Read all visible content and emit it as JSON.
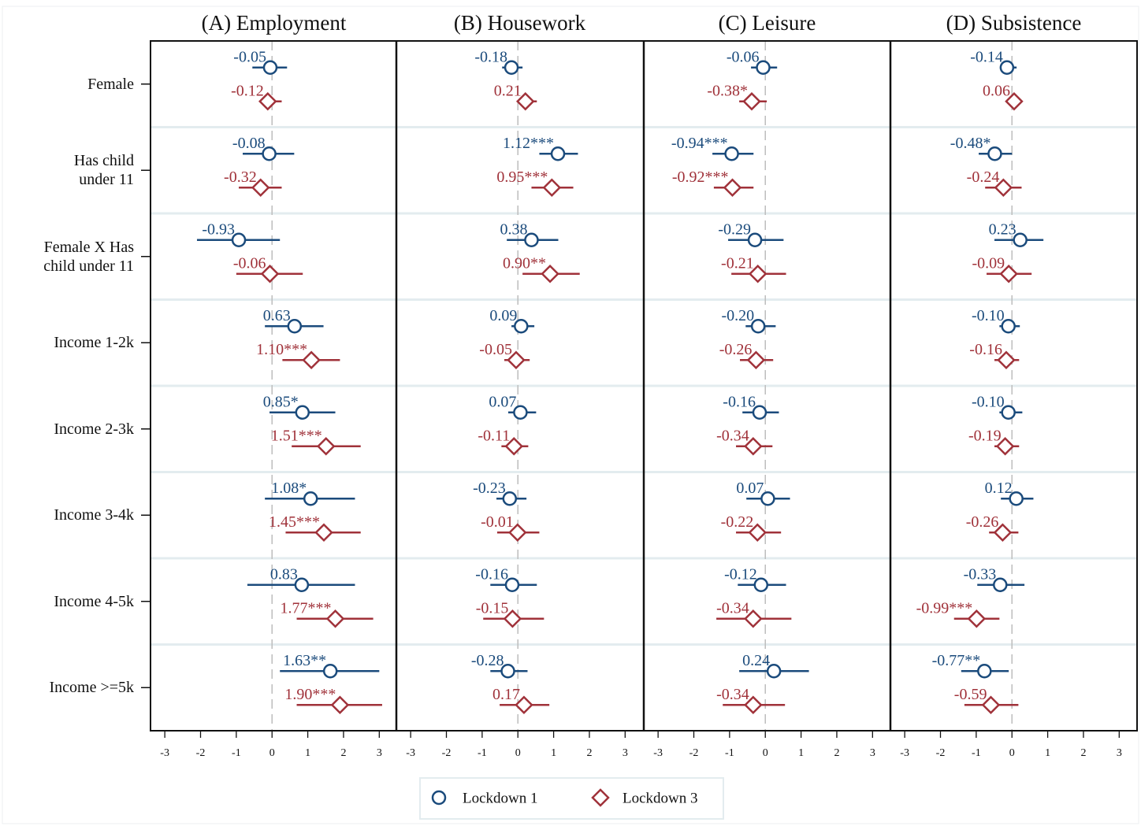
{
  "chart_data": {
    "type": "coefplot",
    "categories": [
      "Female",
      "Has child\nunder 11",
      "Female X Has\nchild under 11",
      "Income 1-2k",
      "Income 2-3k",
      "Income 3-4k",
      "Income 4-5k",
      "Income >=5k"
    ],
    "series": [
      {
        "name": "Lockdown 1",
        "color": "#1b4b7c",
        "marker": "circle"
      },
      {
        "name": "Lockdown 3",
        "color": "#a0323a",
        "marker": "diamond"
      }
    ],
    "xlim": [
      -3.4,
      3.5
    ],
    "xticks": [
      -3,
      -2,
      -1,
      0,
      1,
      2,
      3
    ],
    "xline": 0,
    "panels": [
      {
        "title": "(A) Employment",
        "series": [
          {
            "values": [
              -0.05,
              -0.08,
              -0.93,
              0.63,
              0.85,
              1.08,
              0.83,
              1.63
            ],
            "value_labels": [
              "-0.05",
              "-0.08",
              "-0.93",
              "0.63",
              "0.85*",
              "1.08*",
              "0.83",
              "1.63**"
            ],
            "lower": [
              -0.55,
              -0.82,
              -2.1,
              -0.2,
              -0.07,
              -0.2,
              -0.69,
              0.22
            ],
            "upper": [
              0.42,
              0.62,
              0.22,
              1.44,
              1.77,
              2.32,
              2.32,
              3.0
            ]
          },
          {
            "values": [
              -0.12,
              -0.32,
              -0.06,
              1.1,
              1.51,
              1.45,
              1.77,
              1.9
            ],
            "value_labels": [
              "-0.12",
              "-0.32",
              "-0.06",
              "1.10***",
              "1.51***",
              "1.45***",
              "1.77***",
              "1.90***"
            ],
            "lower": [
              -0.33,
              -0.93,
              -1.0,
              0.29,
              0.55,
              0.38,
              0.69,
              0.69
            ],
            "upper": [
              0.27,
              0.27,
              0.86,
              1.9,
              2.48,
              2.48,
              2.83,
              3.08
            ]
          }
        ]
      },
      {
        "title": "(B) Housework",
        "series": [
          {
            "values": [
              -0.18,
              1.12,
              0.38,
              0.09,
              0.07,
              -0.23,
              -0.16,
              -0.28
            ],
            "value_labels": [
              "-0.18",
              "1.12***",
              "0.38",
              "0.09",
              "0.07",
              "-0.23",
              "-0.16",
              "-0.28"
            ],
            "lower": [
              -0.44,
              0.6,
              -0.31,
              -0.18,
              -0.27,
              -0.6,
              -0.77,
              -0.77
            ],
            "upper": [
              0.13,
              1.68,
              1.13,
              0.46,
              0.51,
              0.24,
              0.53,
              0.27
            ]
          },
          {
            "values": [
              0.21,
              0.95,
              0.9,
              -0.05,
              -0.11,
              -0.01,
              -0.15,
              0.17
            ],
            "value_labels": [
              "0.21",
              "0.95***",
              "0.90**",
              "-0.05",
              "-0.11",
              "-0.01",
              "-0.15",
              "0.17"
            ],
            "lower": [
              -0.02,
              0.38,
              0.13,
              -0.38,
              -0.46,
              -0.58,
              -0.97,
              -0.51
            ],
            "upper": [
              0.53,
              1.55,
              1.73,
              0.33,
              0.29,
              0.6,
              0.73,
              0.88
            ]
          }
        ]
      },
      {
        "title": "(C) Leisure",
        "series": [
          {
            "values": [
              -0.06,
              -0.94,
              -0.29,
              -0.2,
              -0.16,
              0.07,
              -0.12,
              0.24
            ],
            "value_labels": [
              "-0.06",
              "-0.94***",
              "-0.29",
              "-0.20",
              "-0.16",
              "0.07",
              "-0.12",
              "0.24"
            ],
            "lower": [
              -0.4,
              -1.48,
              -1.04,
              -0.55,
              -0.64,
              -0.53,
              -0.77,
              -0.73
            ],
            "upper": [
              0.33,
              -0.33,
              0.51,
              0.29,
              0.38,
              0.69,
              0.58,
              1.22
            ]
          },
          {
            "values": [
              -0.38,
              -0.92,
              -0.21,
              -0.26,
              -0.34,
              -0.22,
              -0.34,
              -0.34
            ],
            "value_labels": [
              "-0.38*",
              "-0.92***",
              "-0.21",
              "-0.26",
              "-0.34",
              "-0.22",
              "-0.34",
              "-0.34"
            ],
            "lower": [
              -0.73,
              -1.44,
              -0.95,
              -0.71,
              -0.82,
              -0.82,
              -1.37,
              -1.19
            ],
            "upper": [
              0.04,
              -0.33,
              0.58,
              0.22,
              0.2,
              0.44,
              0.73,
              0.55
            ]
          }
        ]
      },
      {
        "title": "(D) Subsistence",
        "series": [
          {
            "values": [
              -0.14,
              -0.48,
              0.23,
              -0.1,
              -0.1,
              0.12,
              -0.33,
              -0.77
            ],
            "value_labels": [
              "-0.14",
              "-0.48*",
              "0.23",
              "-0.10",
              "-0.10",
              "0.12",
              "-0.33",
              "-0.77**"
            ],
            "lower": [
              -0.31,
              -0.93,
              -0.49,
              -0.35,
              -0.35,
              -0.31,
              -0.97,
              -1.42
            ],
            "upper": [
              0.13,
              0.0,
              0.88,
              0.22,
              0.29,
              0.6,
              0.35,
              -0.09
            ]
          },
          {
            "values": [
              0.06,
              -0.24,
              -0.09,
              -0.16,
              -0.19,
              -0.26,
              -0.99,
              -0.59
            ],
            "value_labels": [
              "0.06",
              "-0.24",
              "-0.09",
              "-0.16",
              "-0.19",
              "-0.26",
              "-0.99***",
              "-0.59"
            ],
            "lower": [
              -0.09,
              -0.75,
              -0.71,
              -0.49,
              -0.49,
              -0.64,
              -1.62,
              -1.33
            ],
            "upper": [
              0.18,
              0.27,
              0.55,
              0.2,
              0.2,
              0.18,
              -0.35,
              0.18
            ]
          }
        ]
      }
    ]
  }
}
